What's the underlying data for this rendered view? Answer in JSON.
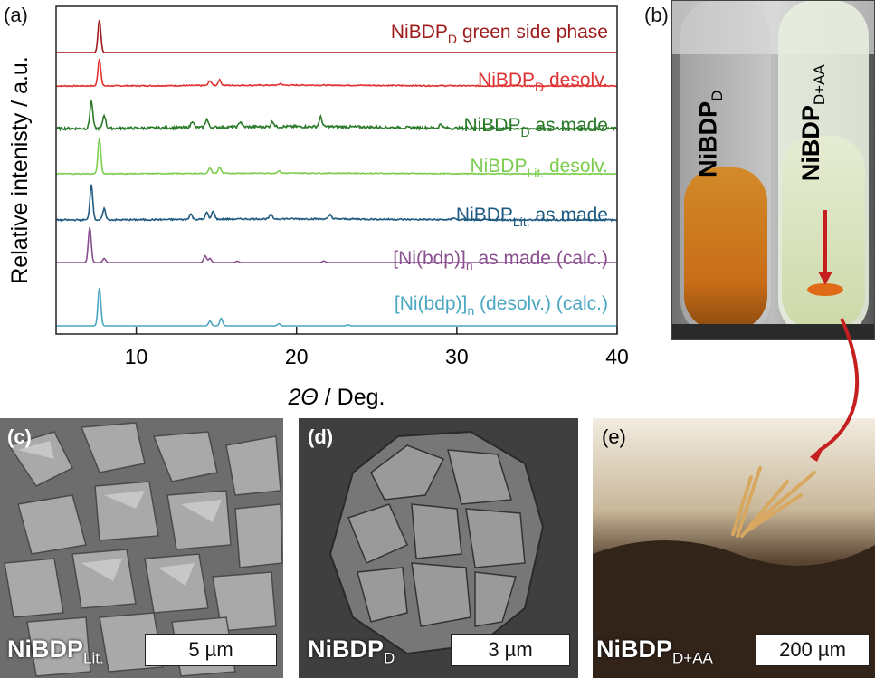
{
  "panels": {
    "a": {
      "label": "(a)"
    },
    "b": {
      "label": "(b)",
      "tube_left": {
        "text": "NiBDP",
        "sub": "D"
      },
      "tube_right": {
        "text": "NiBDP",
        "sub": "D+AA"
      }
    },
    "c": {
      "label": "(c)",
      "sample": {
        "text": "NiBDP",
        "sub": "Lit."
      },
      "scale": "5 µm"
    },
    "d": {
      "label": "(d)",
      "sample": {
        "text": "NiBDP",
        "sub": "D"
      },
      "scale": "3 µm"
    },
    "e": {
      "label": "(e)",
      "sample": {
        "text": "NiBDP",
        "sub": "D+AA"
      },
      "scale": "200 µm"
    }
  },
  "chart_data": {
    "type": "line",
    "xlabel_italic": "2Θ",
    "xlabel_rest": " / Deg.",
    "ylabel": "Relative intenisty / a.u.",
    "xlim": [
      5,
      40
    ],
    "xticks": [
      10,
      20,
      30,
      40
    ],
    "yticks_labeled": false,
    "series": [
      {
        "name": "NiBDP",
        "name_sub": "D",
        "name_rest": " green side phase",
        "color": "#a01c1c",
        "peaks": [
          [
            7.7,
            1.2
          ]
        ],
        "noise": 0.0
      },
      {
        "name": "NiBDP",
        "name_sub": "D",
        "name_rest": " desolv.",
        "color": "#e03232",
        "peaks": [
          [
            7.7,
            1.0
          ],
          [
            14.6,
            0.18
          ],
          [
            15.2,
            0.2
          ],
          [
            19,
            0.06
          ]
        ],
        "noise": 0.05
      },
      {
        "name": "NiBDP",
        "name_sub": "D",
        "name_rest": " as made",
        "color": "#2a7a2a",
        "peaks": [
          [
            7.2,
            1.0
          ],
          [
            8.0,
            0.5
          ],
          [
            13.5,
            0.25
          ],
          [
            14.4,
            0.3
          ],
          [
            16.5,
            0.2
          ],
          [
            18.5,
            0.2
          ],
          [
            21.5,
            0.35
          ],
          [
            29,
            0.15
          ]
        ],
        "noise": 0.12
      },
      {
        "name": "NiBDP",
        "name_sub": "Lit.",
        "name_rest": " desolv.",
        "color": "#7ccd4f",
        "peaks": [
          [
            7.7,
            1.3
          ],
          [
            14.6,
            0.2
          ],
          [
            15.2,
            0.22
          ],
          [
            18.9,
            0.08
          ]
        ],
        "noise": 0.04
      },
      {
        "name": "NiBDP",
        "name_sub": "Lit.",
        "name_rest": " as made",
        "color": "#1f5a80",
        "peaks": [
          [
            7.2,
            1.3
          ],
          [
            8.0,
            0.4
          ],
          [
            13.4,
            0.2
          ],
          [
            14.4,
            0.25
          ],
          [
            14.8,
            0.3
          ],
          [
            18.4,
            0.15
          ],
          [
            22.1,
            0.15
          ],
          [
            29.8,
            0.08
          ]
        ],
        "noise": 0.07
      },
      {
        "name": "[Ni(bdp)]",
        "name_sub": "n",
        "name_rest": " as made (calc.)",
        "color": "#8a4f8f",
        "peaks": [
          [
            7.1,
            1.3
          ],
          [
            8.0,
            0.15
          ],
          [
            14.3,
            0.25
          ],
          [
            14.6,
            0.15
          ],
          [
            16.3,
            0.05
          ],
          [
            21.7,
            0.06
          ]
        ],
        "noise": 0.0
      },
      {
        "name": "[Ni(bdp)]",
        "name_sub": "n",
        "name_rest": " (desolv.) (calc.)",
        "color": "#4aa6c2",
        "peaks": [
          [
            7.7,
            1.4
          ],
          [
            14.6,
            0.18
          ],
          [
            15.3,
            0.28
          ],
          [
            18.9,
            0.08
          ],
          [
            23.2,
            0.04
          ]
        ],
        "noise": 0.0
      }
    ]
  }
}
